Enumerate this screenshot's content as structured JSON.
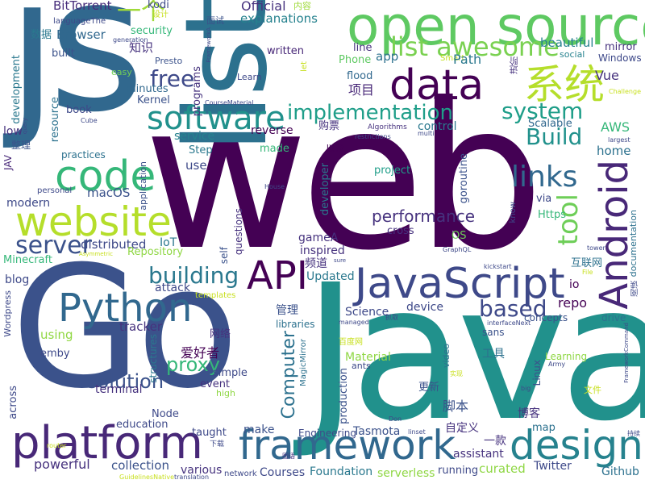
{
  "words": [
    {
      "text": "Go",
      "color": "#3b528b"
    },
    {
      "text": "web",
      "color": "#440154"
    },
    {
      "text": "Java",
      "color": "#21918c"
    },
    {
      "text": "js",
      "color": "#31688e"
    },
    {
      "text": "list",
      "color": "#2c718e"
    },
    {
      "text": "open source",
      "color": "#5ec962"
    },
    {
      "text": "data",
      "color": "#440154"
    },
    {
      "text": "系统",
      "color": "#b5de2b"
    },
    {
      "text": "code",
      "color": "#35b779"
    },
    {
      "text": "website",
      "color": "#b5de2b"
    },
    {
      "text": "software",
      "color": "#21918c"
    },
    {
      "text": "list awesome",
      "color": "#7ad151"
    },
    {
      "text": "Android",
      "color": "#482878"
    },
    {
      "text": "JavaScript",
      "color": "#3e4989"
    },
    {
      "text": "Python",
      "color": "#31688e"
    },
    {
      "text": "framework",
      "color": "#31688e"
    },
    {
      "text": "design",
      "color": "#26828e"
    },
    {
      "text": "platform",
      "color": "#482878"
    },
    {
      "text": "API",
      "color": "#440154"
    },
    {
      "text": "implementation",
      "color": "#1f9e89"
    },
    {
      "text": "system",
      "color": "#1f9e89"
    },
    {
      "text": "Build",
      "color": "#21918c"
    },
    {
      "text": "free",
      "color": "#3e4989"
    },
    {
      "text": "links",
      "color": "#31688e"
    },
    {
      "text": "tool",
      "color": "#6ece58"
    },
    {
      "text": "server",
      "color": "#3b528b"
    },
    {
      "text": "building",
      "color": "#2a788e"
    },
    {
      "text": "performance",
      "color": "#46327e"
    },
    {
      "text": "based",
      "color": "#3e4989"
    },
    {
      "text": "proxy",
      "color": "#35b779"
    },
    {
      "text": "solution",
      "color": "#3b528b"
    },
    {
      "text": "Computer",
      "color": "#2c718e"
    },
    {
      "text": "Official",
      "color": "#46327e"
    },
    {
      "text": "explanations",
      "color": "#26828e"
    },
    {
      "text": "BitTorrent",
      "color": "#472d7b"
    },
    {
      "text": "一个",
      "color": "#a0da39"
    },
    {
      "text": "kodi",
      "color": "#3e4989"
    },
    {
      "text": "设计",
      "color": "#c8e020"
    },
    {
      "text": "面试",
      "color": "#3b528b"
    },
    {
      "text": "内容",
      "color": "#9fda3a"
    },
    {
      "text": "languageThe",
      "color": "#3e4989"
    },
    {
      "text": "security",
      "color": "#35b779"
    },
    {
      "text": "Browser",
      "color": "#31688e"
    },
    {
      "text": "数据",
      "color": "#2a788e"
    },
    {
      "text": "知识",
      "color": "#46327e"
    },
    {
      "text": "built",
      "color": "#3b528b"
    },
    {
      "text": "written",
      "color": "#482878"
    },
    {
      "text": "app",
      "color": "#2c718e"
    },
    {
      "text": "line",
      "color": "#46327e"
    },
    {
      "text": "Phone",
      "color": "#5ec962"
    },
    {
      "text": "Smart",
      "color": "#c2df23"
    },
    {
      "text": "beautiful",
      "color": "#26828e"
    },
    {
      "text": "mirror",
      "color": "#46327e"
    },
    {
      "text": "Windows",
      "color": "#3e4989"
    },
    {
      "text": "social",
      "color": "#26828e"
    },
    {
      "text": "Presto",
      "color": "#3b528b"
    },
    {
      "text": "Path",
      "color": "#2a788e"
    },
    {
      "text": "easy",
      "color": "#73d056"
    },
    {
      "text": "Learn",
      "color": "#3e4989"
    },
    {
      "text": "flood",
      "color": "#31688e"
    },
    {
      "text": "项目",
      "color": "#482878"
    },
    {
      "text": "minutes",
      "color": "#31688e"
    },
    {
      "text": "Kernel",
      "color": "#3b528b"
    },
    {
      "text": "programs",
      "color": "#46327e"
    },
    {
      "text": "Vue",
      "color": "#46327e"
    },
    {
      "text": "development",
      "color": "#2a788e"
    },
    {
      "text": "resource",
      "color": "#2c728e"
    },
    {
      "text": "book",
      "color": "#3e4989"
    },
    {
      "text": "low",
      "color": "#46327e"
    },
    {
      "text": "整理",
      "color": "#3b528b"
    },
    {
      "text": "practices",
      "color": "#2c718e"
    },
    {
      "text": "service",
      "color": "#26828e"
    },
    {
      "text": "reverse",
      "color": "#440154"
    },
    {
      "text": "购票",
      "color": "#46327e"
    },
    {
      "text": "control",
      "color": "#2a788e"
    },
    {
      "text": "Scalable",
      "color": "#31688e"
    },
    {
      "text": "AWS",
      "color": "#35b779"
    },
    {
      "text": "home",
      "color": "#2c718e"
    },
    {
      "text": "Step",
      "color": "#2a788e"
    },
    {
      "text": "made",
      "color": "#35b779"
    },
    {
      "text": "以及",
      "color": "#440154"
    },
    {
      "text": "use",
      "color": "#3e4989"
    },
    {
      "text": "project",
      "color": "#1f9e89"
    },
    {
      "text": "developer",
      "color": "#2a788e"
    },
    {
      "text": "goroutine",
      "color": "#3b528b"
    },
    {
      "text": "JAV",
      "color": "#482878"
    },
    {
      "text": "personal",
      "color": "#3e4989"
    },
    {
      "text": "modern",
      "color": "#3e4989"
    },
    {
      "text": "macOS",
      "color": "#3b528b"
    },
    {
      "text": "via",
      "color": "#3e4989"
    },
    {
      "text": "Https",
      "color": "#35b779"
    },
    {
      "text": "distributed",
      "color": "#3e4989"
    },
    {
      "text": "IoT",
      "color": "#2a788e"
    },
    {
      "text": "gameA",
      "color": "#46327e"
    },
    {
      "text": "cross",
      "color": "#46327e"
    },
    {
      "text": "OS",
      "color": "#6ece58"
    },
    {
      "text": "inspired",
      "color": "#46327e"
    },
    {
      "text": "Repository",
      "color": "#8fd744"
    },
    {
      "text": "Minecraft",
      "color": "#35b779"
    },
    {
      "text": "频道",
      "color": "#46327e"
    },
    {
      "text": "Updated",
      "color": "#2a788e"
    },
    {
      "text": "互联网",
      "color": "#2c718e"
    },
    {
      "text": "documentation",
      "color": "#2c718e"
    },
    {
      "text": "blog",
      "color": "#3e4989"
    },
    {
      "text": "attack",
      "color": "#3e4989"
    },
    {
      "text": "templates",
      "color": "#c8e020"
    },
    {
      "text": "io",
      "color": "#440154"
    },
    {
      "text": "repo",
      "color": "#440154"
    },
    {
      "text": "管理",
      "color": "#3b528b"
    },
    {
      "text": "Science",
      "color": "#3e4989"
    },
    {
      "text": "device",
      "color": "#3e4989"
    },
    {
      "text": "concepts",
      "color": "#3b528b"
    },
    {
      "text": "drive",
      "color": "#2c718e"
    },
    {
      "text": "tracker",
      "color": "#46327e"
    },
    {
      "text": "using",
      "color": "#90d743"
    },
    {
      "text": "libraries",
      "color": "#2c718e"
    },
    {
      "text": "sans",
      "color": "#3b528b"
    },
    {
      "text": "网络",
      "color": "#46327e"
    },
    {
      "text": "爱好者",
      "color": "#440154"
    },
    {
      "text": "emby",
      "color": "#3e4989"
    },
    {
      "text": "Wordpress",
      "color": "#3e4989"
    },
    {
      "text": "structures",
      "color": "#2a788e"
    },
    {
      "text": "MagicMirror",
      "color": "#2c718e"
    },
    {
      "text": "Material",
      "color": "#8fd744"
    },
    {
      "text": "工具",
      "color": "#2c718e"
    },
    {
      "text": "Learning",
      "color": "#8fd744"
    },
    {
      "text": "simple",
      "color": "#3e4989"
    },
    {
      "text": "event",
      "color": "#46327e"
    },
    {
      "text": "terminal",
      "color": "#46327e"
    },
    {
      "text": "high",
      "color": "#8fd744"
    },
    {
      "text": "更新",
      "color": "#3b528b"
    },
    {
      "text": "Linux",
      "color": "#3b528b"
    },
    {
      "text": "video",
      "color": "#2c718e"
    },
    {
      "text": "文件",
      "color": "#c8e020"
    },
    {
      "text": "脚本",
      "color": "#3b528b"
    },
    {
      "text": "production",
      "color": "#3b528b"
    },
    {
      "text": "博客",
      "color": "#46327e"
    },
    {
      "text": "education",
      "color": "#3e4989"
    },
    {
      "text": "Node",
      "color": "#3e4989"
    },
    {
      "text": "across",
      "color": "#3e4989"
    },
    {
      "text": "taught",
      "color": "#3e4989"
    },
    {
      "text": "make",
      "color": "#3b528b"
    },
    {
      "text": "Tasmota",
      "color": "#3b528b"
    },
    {
      "text": "自定义",
      "color": "#46327e"
    },
    {
      "text": "map",
      "color": "#2c718e"
    },
    {
      "text": "Engineering",
      "color": "#3e4989"
    },
    {
      "text": "一款",
      "color": "#46327e"
    },
    {
      "text": "powerful",
      "color": "#46327e"
    },
    {
      "text": "collection",
      "color": "#3b528b"
    },
    {
      "text": "various",
      "color": "#46327e"
    },
    {
      "text": "Courses",
      "color": "#3e4989"
    },
    {
      "text": "Foundation",
      "color": "#2a788e"
    },
    {
      "text": "serverless",
      "color": "#8fd744"
    },
    {
      "text": "running",
      "color": "#3e4989"
    },
    {
      "text": "assistant",
      "color": "#46327e"
    },
    {
      "text": "curated",
      "color": "#8fd744"
    },
    {
      "text": "Twitter",
      "color": "#3e4989"
    },
    {
      "text": "Github",
      "color": "#2c718e"
    },
    {
      "text": "network",
      "color": "#3e4989"
    },
    {
      "text": "下载",
      "color": "#3e4989"
    },
    {
      "text": "translation",
      "color": "#3e4989"
    },
    {
      "text": "let",
      "color": "#c8e020"
    },
    {
      "text": "进阶",
      "color": "#46327e"
    },
    {
      "text": "阅读",
      "color": "#3e4989"
    },
    {
      "text": "抓取",
      "color": "#3e4989"
    },
    {
      "text": "百度网",
      "color": "#c8e020"
    },
    {
      "text": "图语",
      "color": "#46327e"
    },
    {
      "text": "持续",
      "color": "#3e4989"
    },
    {
      "text": "实现",
      "color": "#c8e020"
    },
    {
      "text": "ants",
      "color": "#3e4989"
    },
    {
      "text": "Army",
      "color": "#3e4989"
    },
    {
      "text": "know",
      "color": "#3e4989"
    },
    {
      "text": "self",
      "color": "#3b528b"
    },
    {
      "text": "questions",
      "color": "#46327e"
    },
    {
      "text": "application",
      "color": "#3b528b"
    },
    {
      "text": "House",
      "color": "#3e4989"
    },
    {
      "text": "Cube",
      "color": "#3e4989"
    },
    {
      "text": "query",
      "color": "#3e4989"
    },
    {
      "text": "generation",
      "color": "#3e4989"
    },
    {
      "text": "FrameworkA",
      "color": "#3e4989"
    },
    {
      "text": "CourseMaterial",
      "color": "#3e4989"
    },
    {
      "text": "Algorithms",
      "color": "#46327e"
    },
    {
      "text": "multi",
      "color": "#3e4989"
    },
    {
      "text": "restrictions",
      "color": "#3e4989"
    },
    {
      "text": "largest",
      "color": "#3e4989"
    },
    {
      "text": "Challenge",
      "color": "#c8e020"
    },
    {
      "text": "tower",
      "color": "#3e4989"
    },
    {
      "text": "kickstart",
      "color": "#3e4989"
    },
    {
      "text": "GraphQL",
      "color": "#3e4989"
    },
    {
      "text": "Asymmetric",
      "color": "#c8e020"
    },
    {
      "text": "sure",
      "color": "#3e4989"
    },
    {
      "text": "managed",
      "color": "#3e4989"
    },
    {
      "text": "interfaceNext",
      "color": "#3e4989"
    },
    {
      "text": "FrameworkCommand",
      "color": "#3e4989"
    },
    {
      "text": "File",
      "color": "#c8e020"
    },
    {
      "text": "Don",
      "color": "#3e4989"
    },
    {
      "text": "big",
      "color": "#3e4989"
    },
    {
      "text": "linset",
      "color": "#3e4989"
    },
    {
      "text": "router",
      "color": "#c8e020"
    },
    {
      "text": "GuidelinesNative",
      "color": "#c8e020"
    }
  ]
}
